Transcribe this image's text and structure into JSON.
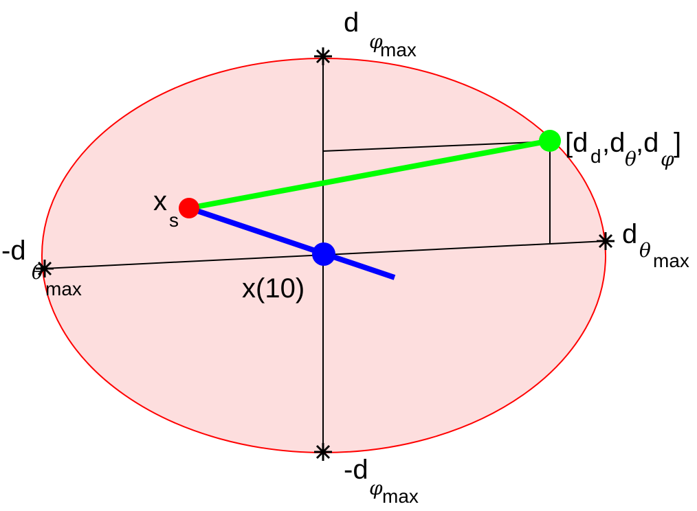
{
  "colors": {
    "ellipse_fill": "#fddede",
    "ellipse_stroke": "#ff0000",
    "axis": "#000000",
    "green": "#00ff00",
    "blue": "#0000ff",
    "red": "#ff0000"
  },
  "labels": {
    "d_phi_max": {
      "main": "d",
      "greek": "φ",
      "sub": "max"
    },
    "neg_d_phi_max": {
      "main": "-d",
      "greek": "φ",
      "sub": "max"
    },
    "d_theta_max": {
      "main": "d",
      "greek": "θ",
      "sub": "max"
    },
    "neg_d_theta_max": {
      "main": "-d",
      "greek": "θ",
      "sub": "max"
    },
    "x_s": {
      "main": "x",
      "sub": "s"
    },
    "x10": "x(10)",
    "point": {
      "open": "[d",
      "sub_d": "d",
      "comma1": ",d",
      "theta": "θ",
      "comma2": ",d",
      "phi": "φ",
      "close": "]"
    }
  }
}
